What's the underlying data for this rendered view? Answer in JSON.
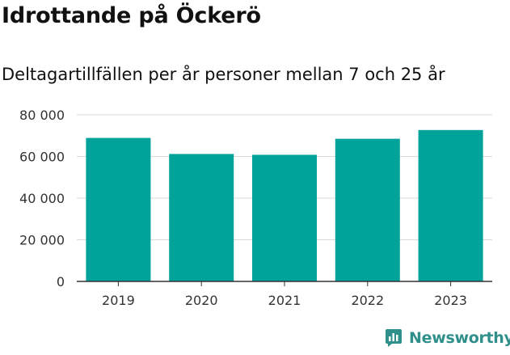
{
  "header": {
    "title": "Idrottande på Öckerö",
    "subtitle": "Deltagartillfällen per år personer mellan 7 och 25 år"
  },
  "brand": {
    "name": "Newsworthy",
    "icon": "newsworthy-logo-icon",
    "color": "#2f8f8a"
  },
  "colors": {
    "bar": "#00a39a",
    "grid": "#d9d9d9",
    "axis": "#333333",
    "text": "#333333"
  },
  "chart_data": {
    "type": "bar",
    "categories": [
      "2019",
      "2020",
      "2021",
      "2022",
      "2023"
    ],
    "values": [
      68900,
      61200,
      60800,
      68500,
      72700
    ],
    "ylim": [
      0,
      80000
    ],
    "yticks": [
      0,
      20000,
      40000,
      60000,
      80000
    ],
    "ytick_labels": [
      "0",
      "20 000",
      "40 000",
      "60 000",
      "80 000"
    ],
    "grid": true,
    "xlabel": "",
    "ylabel": ""
  }
}
